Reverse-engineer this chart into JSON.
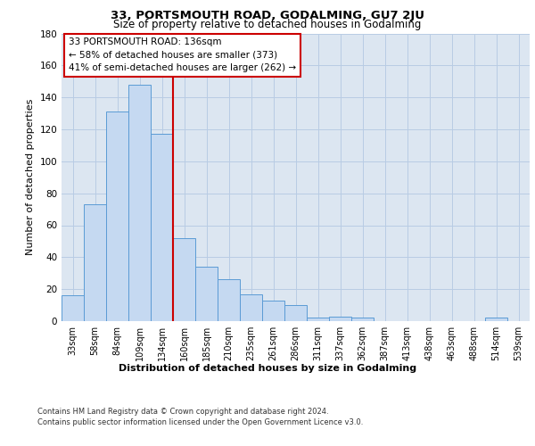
{
  "title": "33, PORTSMOUTH ROAD, GODALMING, GU7 2JU",
  "subtitle": "Size of property relative to detached houses in Godalming",
  "xlabel": "Distribution of detached houses by size in Godalming",
  "ylabel": "Number of detached properties",
  "categories": [
    "33sqm",
    "58sqm",
    "84sqm",
    "109sqm",
    "134sqm",
    "160sqm",
    "185sqm",
    "210sqm",
    "235sqm",
    "261sqm",
    "286sqm",
    "311sqm",
    "337sqm",
    "362sqm",
    "387sqm",
    "413sqm",
    "438sqm",
    "463sqm",
    "488sqm",
    "514sqm",
    "539sqm"
  ],
  "values": [
    16,
    73,
    131,
    148,
    117,
    52,
    34,
    26,
    17,
    13,
    10,
    2,
    3,
    2,
    0,
    0,
    0,
    0,
    0,
    2,
    0
  ],
  "bar_color": "#c5d9f1",
  "bar_edge_color": "#5b9bd5",
  "red_line_index": 4,
  "annotation_text": "33 PORTSMOUTH ROAD: 136sqm\n← 58% of detached houses are smaller (373)\n41% of semi-detached houses are larger (262) →",
  "annotation_box_color": "#ffffff",
  "annotation_box_edge": "#cc0000",
  "ylim": [
    0,
    180
  ],
  "yticks": [
    0,
    20,
    40,
    60,
    80,
    100,
    120,
    140,
    160,
    180
  ],
  "grid_color": "#b8cce4",
  "background_color": "#dce6f1",
  "footer_line1": "Contains HM Land Registry data © Crown copyright and database right 2024.",
  "footer_line2": "Contains public sector information licensed under the Open Government Licence v3.0."
}
